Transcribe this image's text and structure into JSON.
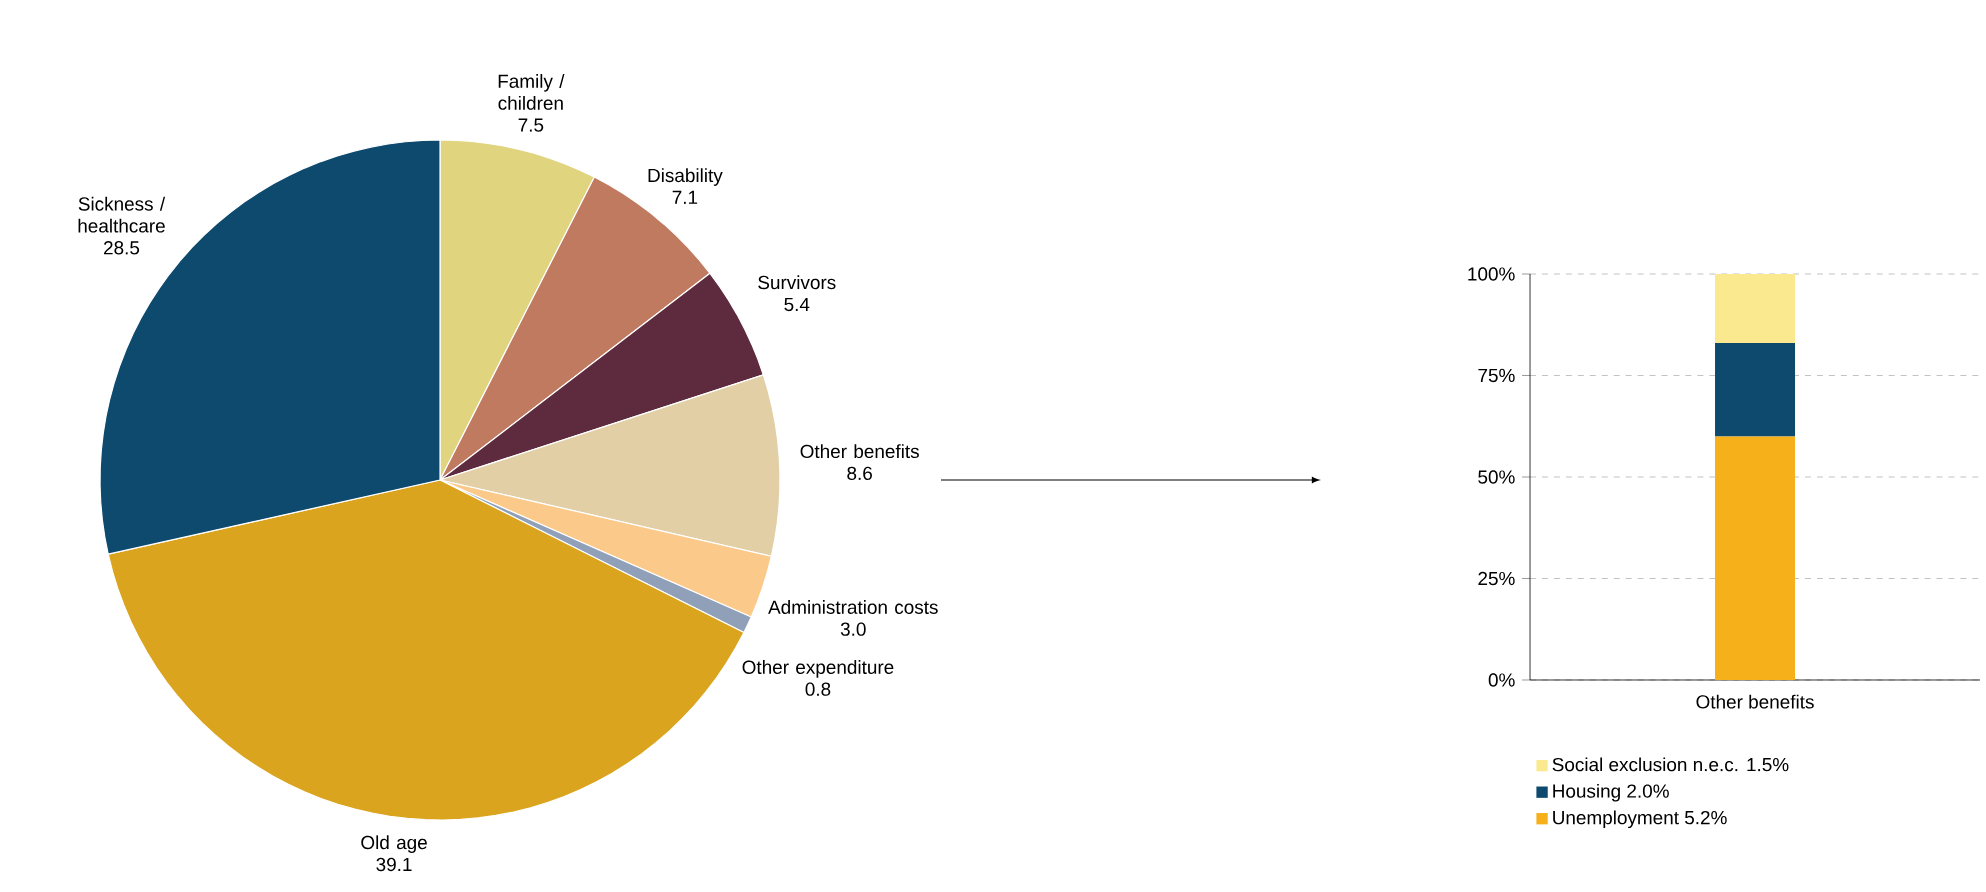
{
  "chart_data": [
    {
      "type": "pie",
      "categories": [
        "Family / children",
        "Disability",
        "Survivors",
        "Other benefits",
        "Administration costs",
        "Other expenditure",
        "Old age",
        "Sickness / healthcare"
      ],
      "values": [
        7.5,
        7.1,
        5.4,
        8.6,
        3.0,
        0.8,
        39.1,
        28.5
      ],
      "colors": [
        "#e0d47f",
        "#c07a60",
        "#5e2a3e",
        "#e2cfa6",
        "#fbc98a",
        "#8fa0b8",
        "#dba41e",
        "#0e4a6e"
      ],
      "value_labels": [
        "7.5",
        "7.1",
        "5.4",
        "8.6",
        "3.0",
        "0.8",
        "39.1",
        "28.5"
      ]
    },
    {
      "type": "bar",
      "stacked": true,
      "categories": [
        "Other benefits"
      ],
      "series": [
        {
          "name": "Unemployment 5.2%",
          "color": "#f5b01a",
          "values": [
            60
          ]
        },
        {
          "name": "Housing 2.0%",
          "color": "#0e4a6e",
          "values": [
            23
          ]
        },
        {
          "name": "Social exclusion n.e.c. 1.5%",
          "color": "#fbe98f",
          "values": [
            17
          ]
        }
      ],
      "ylim": [
        0,
        100
      ],
      "yticks": [
        {
          "value": 0,
          "label": "0%"
        },
        {
          "value": 25,
          "label": "25%"
        },
        {
          "value": 50,
          "label": "50%"
        },
        {
          "value": 75,
          "label": "75%"
        },
        {
          "value": 100,
          "label": "100%"
        }
      ],
      "grid": "y",
      "legend": "bottom"
    }
  ]
}
